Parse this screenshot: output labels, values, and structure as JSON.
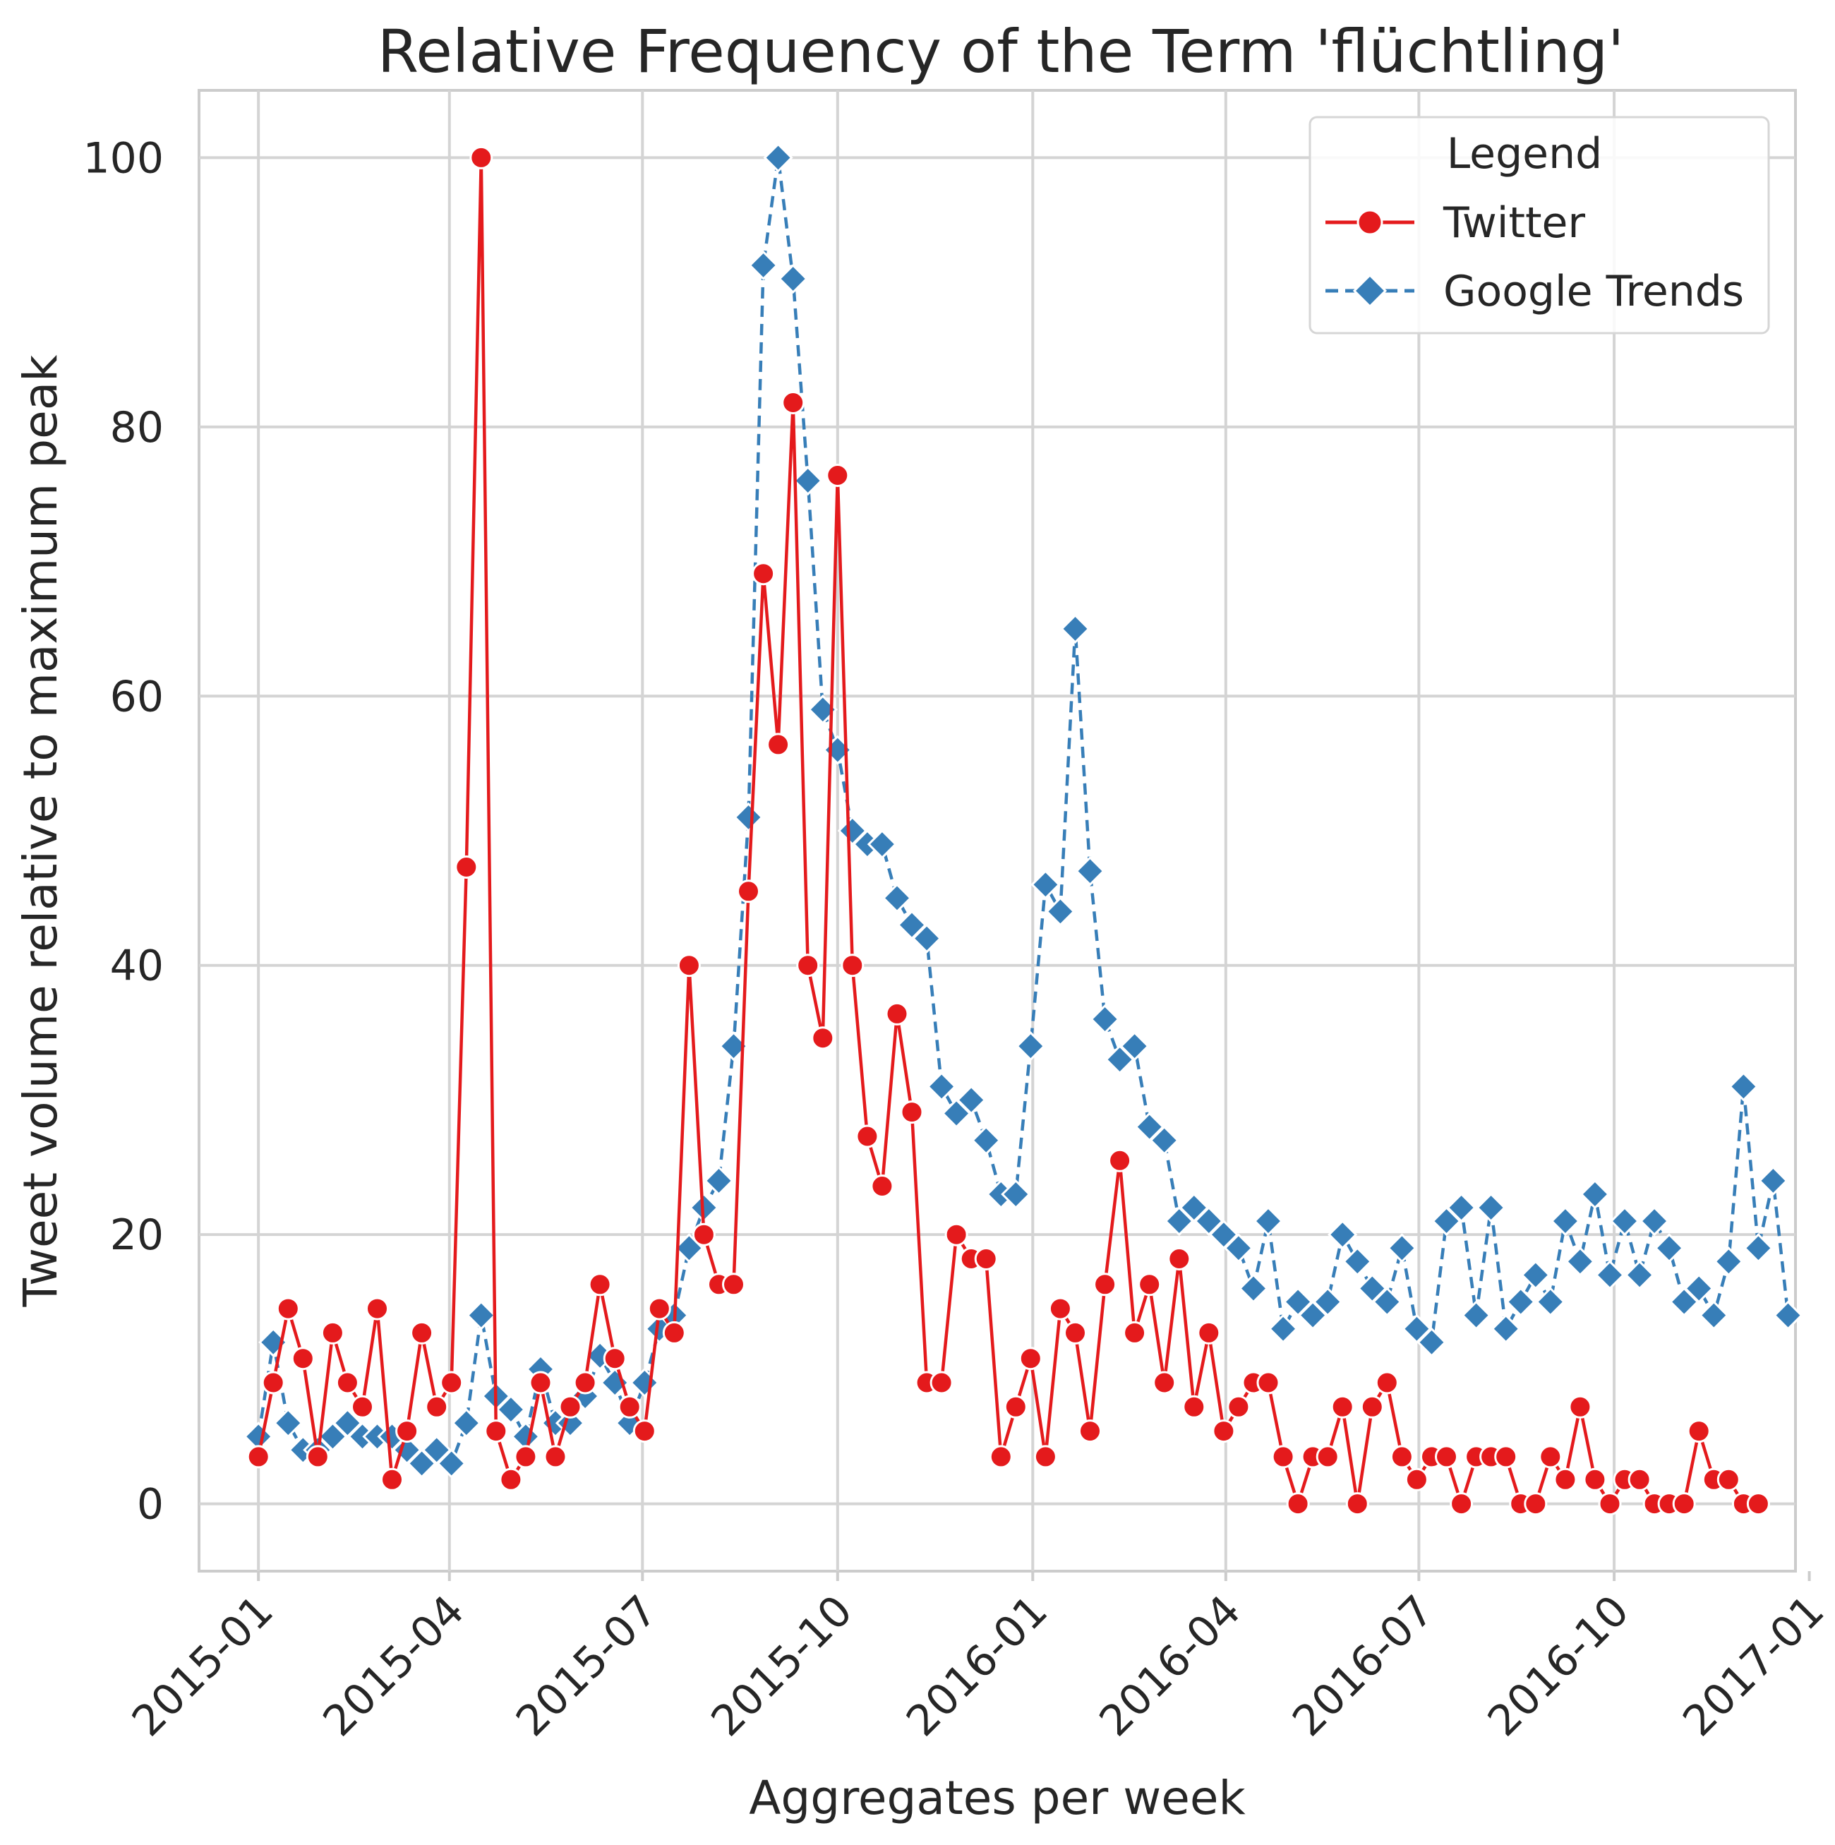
{
  "chart_data": {
    "type": "line",
    "title": "Relative Frequency of the Term 'flüchtling'",
    "xlabel": "Aggregates per week",
    "ylabel": "Tweet volume relative to maximum peak",
    "ylim": [
      -5,
      105
    ],
    "yticks": [
      0,
      20,
      40,
      60,
      80,
      100
    ],
    "xlim_weeks": [
      -4.0,
      103.5
    ],
    "xticks": [
      {
        "label": "2015-01",
        "week": 0.0
      },
      {
        "label": "2015-04",
        "week": 12.86
      },
      {
        "label": "2015-07",
        "week": 25.86
      },
      {
        "label": "2015-10",
        "week": 39.0
      },
      {
        "label": "2016-01",
        "week": 52.14
      },
      {
        "label": "2016-04",
        "week": 65.14
      },
      {
        "label": "2016-07",
        "week": 78.14
      },
      {
        "label": "2016-10",
        "week": 91.29
      },
      {
        "label": "2017-01",
        "week": 104.43
      }
    ],
    "grid": true,
    "legend": {
      "title": "Legend",
      "position": "top-right"
    },
    "series": [
      {
        "name": "Twitter",
        "color": "#e41a1c",
        "marker": "circle",
        "linestyle": "solid",
        "values": [
          3.5,
          9,
          14.5,
          10.8,
          3.5,
          12.7,
          9,
          7.2,
          14.5,
          1.8,
          5.4,
          12.7,
          7.2,
          9,
          47.3,
          100,
          5.4,
          1.8,
          3.5,
          9,
          3.5,
          7.2,
          9,
          16.3,
          10.8,
          7.2,
          5.4,
          14.5,
          12.7,
          40,
          20,
          16.3,
          16.3,
          45.5,
          69.1,
          56.4,
          81.8,
          40,
          34.6,
          76.4,
          40,
          27.3,
          23.6,
          36.4,
          29.1,
          9,
          9,
          20,
          18.2,
          18.2,
          3.5,
          7.2,
          10.8,
          3.5,
          14.5,
          12.7,
          5.4,
          16.3,
          25.5,
          12.7,
          16.3,
          9,
          18.2,
          7.2,
          12.7,
          5.4,
          7.2,
          9,
          9,
          3.5,
          0,
          3.5,
          3.5,
          7.2,
          0,
          7.2,
          9,
          3.5,
          1.8,
          3.5,
          3.5,
          0,
          3.5,
          3.5,
          3.5,
          0,
          0,
          3.5,
          1.8,
          7.2,
          1.8,
          0,
          1.8,
          1.8,
          0,
          0,
          0,
          5.4,
          1.8,
          1.8,
          0,
          0
        ]
      },
      {
        "name": "Google Trends",
        "color": "#377eb8",
        "marker": "diamond",
        "linestyle": "dashed",
        "values": [
          5,
          12,
          6,
          4,
          4,
          5,
          6,
          5,
          5,
          5,
          4,
          3,
          4,
          3,
          6,
          14,
          8,
          7,
          5,
          10,
          6,
          6,
          8,
          11,
          9,
          6,
          9,
          13,
          14,
          19,
          22,
          24,
          34,
          51,
          92,
          100,
          91,
          76,
          59,
          56,
          50,
          49,
          49,
          45,
          43,
          42,
          31,
          29,
          30,
          27,
          23,
          23,
          34,
          46,
          44,
          65,
          47,
          36,
          33,
          34,
          28,
          27,
          21,
          22,
          21,
          20,
          19,
          16,
          21,
          13,
          15,
          14,
          15,
          20,
          18,
          16,
          15,
          19,
          13,
          12,
          21,
          22,
          14,
          22,
          13,
          15,
          17,
          15,
          21,
          18,
          23,
          17,
          21,
          17,
          21,
          19,
          15,
          16,
          14,
          18,
          31,
          19,
          24,
          14
        ]
      }
    ]
  }
}
